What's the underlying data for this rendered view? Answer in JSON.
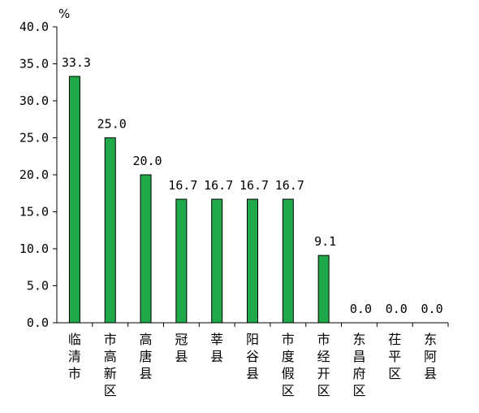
{
  "chart_data": {
    "type": "bar",
    "categories": [
      "临清市",
      "市高新区",
      "高唐县",
      "冠县",
      "莘县",
      "阳谷县",
      "市度假区",
      "市经开区",
      "东昌府区",
      "茌平区",
      "东阿县"
    ],
    "values": [
      33.3,
      25.0,
      20.0,
      16.7,
      16.7,
      16.7,
      16.7,
      9.1,
      0.0,
      0.0,
      0.0
    ],
    "value_labels": [
      "33.3",
      "25.0",
      "20.0",
      "16.7",
      "16.7",
      "16.7",
      "16.7",
      "9.1",
      "0.0",
      "0.0",
      "0.0"
    ],
    "ylim": [
      0,
      40
    ],
    "yticks": [
      0,
      5,
      10,
      15,
      20,
      25,
      30,
      35,
      40
    ],
    "ytick_labels": [
      "0.0",
      "5.0",
      "10.0",
      "15.0",
      "20.0",
      "25.0",
      "30.0",
      "35.0",
      "40.0"
    ],
    "ylabel": "%",
    "bar_color": "#1fa94a",
    "bar_edge_color": "#000000",
    "grid": false,
    "legend": "none"
  }
}
